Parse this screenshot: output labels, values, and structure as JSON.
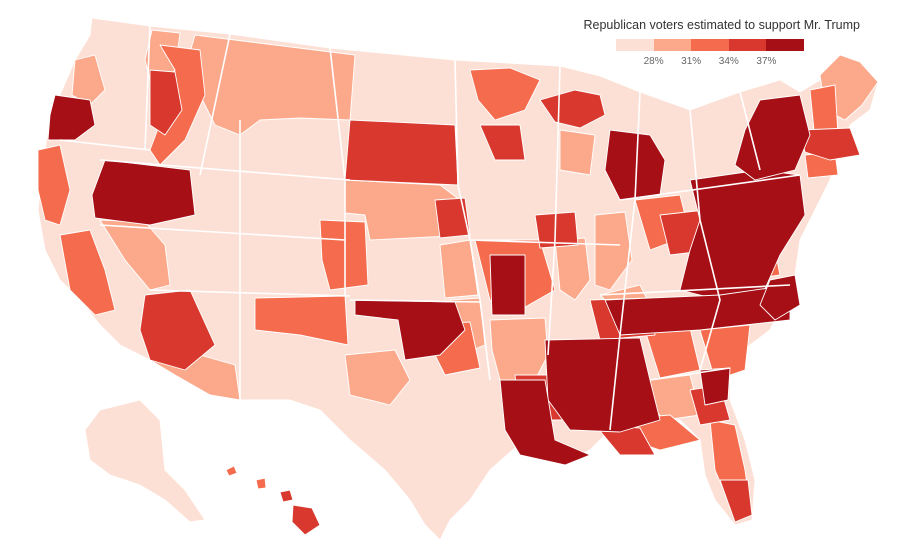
{
  "legend": {
    "title": "Republican voters estimated to support Mr. Trump",
    "ticks": [
      "28%",
      "31%",
      "34%",
      "37%"
    ],
    "colors": [
      "#fde0d5",
      "#fca98b",
      "#f46b4d",
      "#d8382e",
      "#a50f15"
    ]
  }
}
